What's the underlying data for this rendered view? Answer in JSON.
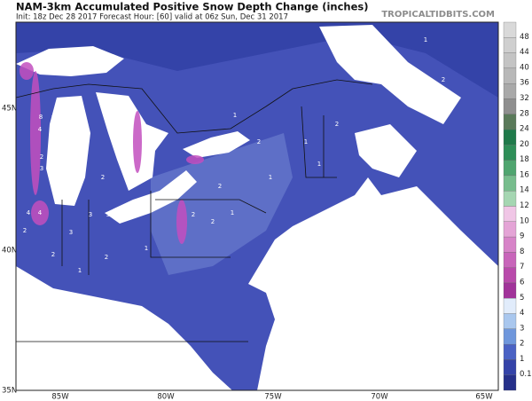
{
  "header": {
    "title": "NAM-3km Accumulated Positive Snow Depth Change (inches)",
    "subtitle": "Init: 18z Dec 28 2017   Forecast Hour: [60]   valid at 06z Sun, Dec 31 2017",
    "site": "TROPICALTIDBITS.COM"
  },
  "lat_labels": [
    "45N",
    "40N",
    "35N"
  ],
  "lon_labels": [
    "85W",
    "80W",
    "75W",
    "70W",
    "65W"
  ],
  "colorbar": [
    "48",
    "44",
    "40",
    "36",
    "32",
    "28",
    "24",
    "20",
    "18",
    "16",
    "14",
    "12",
    "10",
    "9",
    "8",
    "7",
    "6",
    "5",
    "4",
    "3",
    "2",
    "1",
    "0.1"
  ],
  "map_labels": [
    "8",
    "2",
    "4",
    "2",
    "2",
    "3",
    "2",
    "4",
    "4",
    "3",
    "3",
    "2",
    "3",
    "2",
    "2",
    "1",
    "1",
    "2",
    "2",
    "1",
    "1",
    "2",
    "2",
    "1",
    "1",
    "1",
    "2",
    "1",
    "1",
    "2",
    "1"
  ]
}
